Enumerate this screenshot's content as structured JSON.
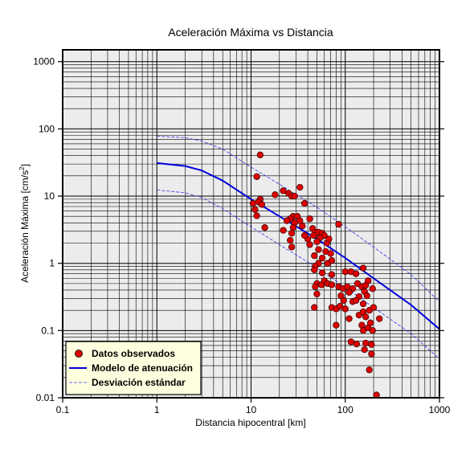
{
  "chart_data": {
    "type": "scatter",
    "title": "Aceleración Máxima vs Distancia",
    "xlabel": "Distancia hipocentral [km]",
    "ylabel": "Aceleración Máxima [cm/s",
    "ylabel_sup": "2",
    "ylabel_end": "]",
    "x_scale": "log",
    "y_scale": "log",
    "xlim": [
      0.1,
      1000
    ],
    "ylim": [
      0.01,
      1500
    ],
    "x_ticks": [
      0.1,
      1,
      10,
      100,
      1000
    ],
    "x_tick_labels": [
      "0.1",
      "1",
      "10",
      "100",
      "1000"
    ],
    "y_ticks": [
      0.01,
      0.1,
      1,
      10,
      100,
      1000
    ],
    "y_tick_labels": [
      "0.01",
      "0.1",
      "1",
      "10",
      "100",
      "1000"
    ],
    "grid": true,
    "legend_position": "bottom-left",
    "colors": {
      "background": "#ececec",
      "points": "#dd0000",
      "model": "#0000dd",
      "std_dev": "#3333ee",
      "legend_bg": "#ffffe0"
    },
    "legend": [
      {
        "label": "Datos observados",
        "kind": "marker"
      },
      {
        "label": "Modelo de atenuación",
        "kind": "solid"
      },
      {
        "label": "Desviación estándar",
        "kind": "dashed"
      }
    ],
    "series": [
      {
        "name": "Datos observados",
        "kind": "scatter",
        "points": [
          [
            12.5,
            41
          ],
          [
            11.5,
            19.5
          ],
          [
            22,
            12
          ],
          [
            33,
            13.5
          ],
          [
            25,
            11
          ],
          [
            27,
            10
          ],
          [
            29,
            10
          ],
          [
            18,
            10.5
          ],
          [
            12.5,
            9
          ],
          [
            12,
            8.2
          ],
          [
            13,
            7.5
          ],
          [
            10.5,
            7.8
          ],
          [
            11,
            6.3
          ],
          [
            11.5,
            5.1
          ],
          [
            37,
            7.8
          ],
          [
            28,
            5
          ],
          [
            31,
            5
          ],
          [
            26,
            4.6
          ],
          [
            33,
            4.3
          ],
          [
            24,
            4.3
          ],
          [
            29,
            4.0
          ],
          [
            35,
            3.6
          ],
          [
            14,
            3.4
          ],
          [
            28,
            3.4
          ],
          [
            22,
            3.1
          ],
          [
            27,
            2.8
          ],
          [
            42,
            4.6
          ],
          [
            45,
            3.3
          ],
          [
            48,
            2.9
          ],
          [
            52,
            2.9
          ],
          [
            57,
            2.8
          ],
          [
            60,
            2.6
          ],
          [
            46,
            2.6
          ],
          [
            54,
            2.4
          ],
          [
            40,
            2.3
          ],
          [
            50,
            2.1
          ],
          [
            64,
            2.0
          ],
          [
            67,
            2.3
          ],
          [
            26,
            2.2
          ],
          [
            37,
            2.6
          ],
          [
            85,
            3.8
          ],
          [
            42,
            1.9
          ],
          [
            27,
            1.75
          ],
          [
            52,
            1.6
          ],
          [
            62,
            1.5
          ],
          [
            70,
            1.4
          ],
          [
            47,
            1.3
          ],
          [
            57,
            1.2
          ],
          [
            52,
            1.0
          ],
          [
            48,
            0.9
          ],
          [
            65,
            1.0
          ],
          [
            72,
            1.1
          ],
          [
            100,
            0.75
          ],
          [
            115,
            0.75
          ],
          [
            130,
            0.7
          ],
          [
            155,
            0.85
          ],
          [
            47,
            0.8
          ],
          [
            57,
            0.72
          ],
          [
            72,
            0.68
          ],
          [
            60,
            0.55
          ],
          [
            50,
            0.5
          ],
          [
            56,
            0.48
          ],
          [
            65,
            0.5
          ],
          [
            72,
            0.48
          ],
          [
            85,
            0.45
          ],
          [
            95,
            0.42
          ],
          [
            105,
            0.45
          ],
          [
            120,
            0.42
          ],
          [
            135,
            0.5
          ],
          [
            150,
            0.45
          ],
          [
            165,
            0.47
          ],
          [
            175,
            0.55
          ],
          [
            195,
            0.42
          ],
          [
            48,
            0.45
          ],
          [
            110,
            0.37
          ],
          [
            90,
            0.33
          ],
          [
            96,
            0.28
          ],
          [
            120,
            0.27
          ],
          [
            160,
            0.38
          ],
          [
            140,
            0.32
          ],
          [
            130,
            0.28
          ],
          [
            50,
            0.35
          ],
          [
            170,
            0.33
          ],
          [
            155,
            0.25
          ],
          [
            47,
            0.22
          ],
          [
            72,
            0.22
          ],
          [
            80,
            0.21
          ],
          [
            88,
            0.23
          ],
          [
            100,
            0.21
          ],
          [
            140,
            0.17
          ],
          [
            155,
            0.19
          ],
          [
            180,
            0.2
          ],
          [
            200,
            0.22
          ],
          [
            165,
            0.16
          ],
          [
            110,
            0.15
          ],
          [
            150,
            0.12
          ],
          [
            155,
            0.1
          ],
          [
            175,
            0.11
          ],
          [
            185,
            0.13
          ],
          [
            80,
            0.12
          ],
          [
            195,
            0.1
          ],
          [
            230,
            0.15
          ],
          [
            115,
            0.068
          ],
          [
            132,
            0.063
          ],
          [
            165,
            0.065
          ],
          [
            160,
            0.052
          ],
          [
            190,
            0.062
          ],
          [
            190,
            0.045
          ],
          [
            180,
            0.026
          ],
          [
            215,
            0.011
          ]
        ]
      },
      {
        "name": "Modelo de atenuación",
        "kind": "line",
        "points": [
          [
            1,
            31
          ],
          [
            2,
            28
          ],
          [
            3,
            24
          ],
          [
            5,
            17
          ],
          [
            10,
            9
          ],
          [
            20,
            5
          ],
          [
            50,
            2.3
          ],
          [
            100,
            1.2
          ],
          [
            200,
            0.6
          ],
          [
            500,
            0.24
          ],
          [
            1000,
            0.105
          ]
        ]
      },
      {
        "name": "Desviación estándar",
        "kind": "dashed-band",
        "upper": [
          [
            1,
            78
          ],
          [
            2,
            74
          ],
          [
            3,
            66
          ],
          [
            5,
            50
          ],
          [
            10,
            27
          ],
          [
            20,
            15
          ],
          [
            50,
            6.8
          ],
          [
            100,
            3.5
          ],
          [
            200,
            1.75
          ],
          [
            500,
            0.68
          ],
          [
            1000,
            0.27
          ]
        ],
        "lower": [
          [
            1,
            12.3
          ],
          [
            2,
            11.2
          ],
          [
            3,
            9.5
          ],
          [
            5,
            6.5
          ],
          [
            10,
            3.5
          ],
          [
            20,
            1.9
          ],
          [
            50,
            0.86
          ],
          [
            100,
            0.44
          ],
          [
            200,
            0.22
          ],
          [
            500,
            0.09
          ],
          [
            1000,
            0.038
          ]
        ]
      }
    ]
  }
}
